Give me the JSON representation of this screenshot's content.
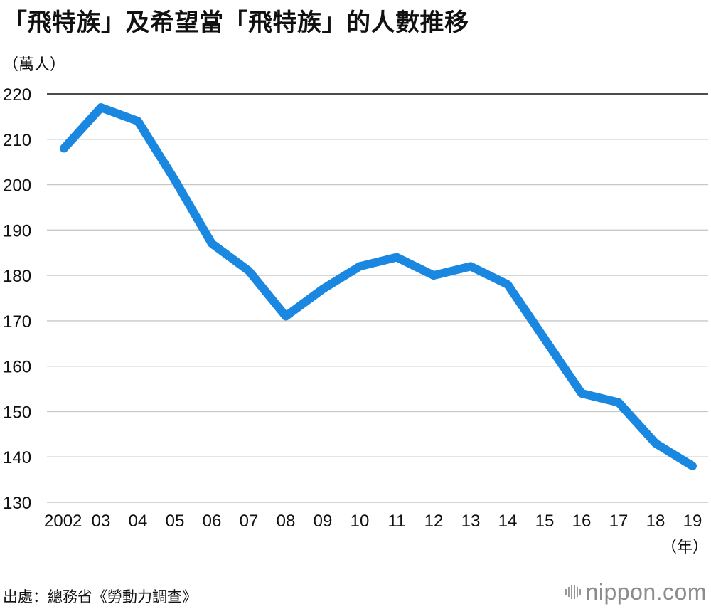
{
  "header": {
    "title": "「飛特族」及希望當「飛特族」的人數推移"
  },
  "chart_data": {
    "type": "line",
    "title": "「飛特族」及希望當「飛特族」的人數推移",
    "ylabel": "（萬人）",
    "xlabel": "（年）",
    "x": [
      "2002",
      "03",
      "04",
      "05",
      "06",
      "07",
      "08",
      "09",
      "10",
      "11",
      "12",
      "13",
      "14",
      "15",
      "16",
      "17",
      "18",
      "19"
    ],
    "series": [
      {
        "values": [
          208,
          217,
          214,
          201,
          187,
          181,
          171,
          177,
          182,
          184,
          180,
          182,
          178,
          166,
          154,
          152,
          143,
          138
        ]
      }
    ],
    "ylim": [
      130,
      220
    ],
    "yticks": [
      "130",
      "140",
      "150",
      "160",
      "170",
      "180",
      "190",
      "200",
      "210",
      "220"
    ],
    "grid": true,
    "legend": "none",
    "line_color": "#1a87e0"
  },
  "footer": {
    "source": "出處：總務省《勞動力調查》",
    "brand": "nippon.com",
    "brand_mark": "nippon-logo-icon"
  }
}
